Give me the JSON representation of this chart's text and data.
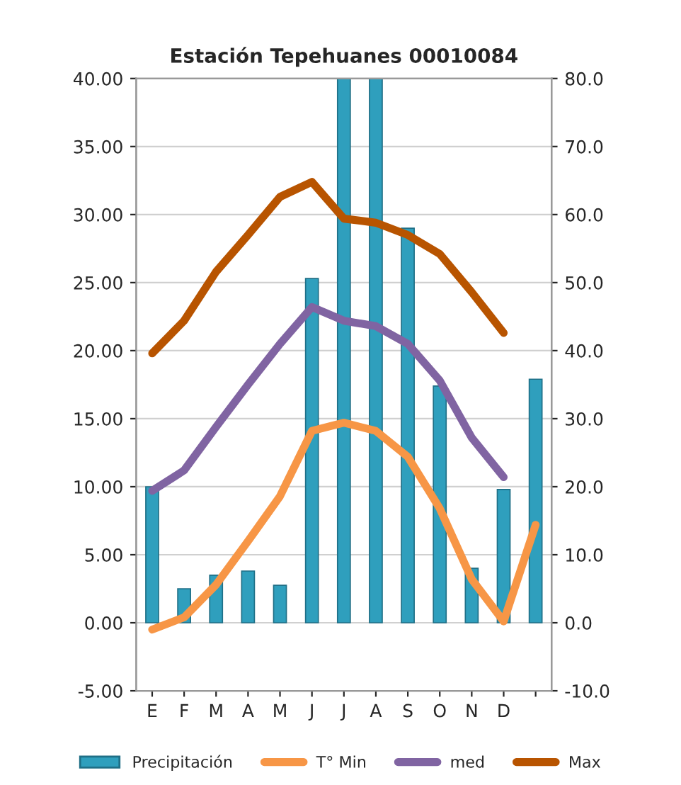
{
  "chart_data": {
    "type": "bar",
    "title": "Estación Tepehuanes 00010084",
    "categories": [
      "E",
      "F",
      "M",
      "A",
      "M",
      "J",
      "J",
      "A",
      "S",
      "O",
      "N",
      "D",
      null
    ],
    "series": [
      {
        "name": "Precipitación",
        "axis": "y2",
        "color": "#2f9fbd",
        "values": [
          20,
          5,
          7,
          7.6,
          5.5,
          50.6,
          80,
          80,
          58,
          34.8,
          8,
          19.6,
          35.8
        ]
      },
      {
        "name": "T° Min",
        "type": "line",
        "color": "#f79646",
        "values": [
          -0.5,
          0.4,
          2.8,
          6,
          9.3,
          14.1,
          14.7,
          14.1,
          12.2,
          8.4,
          3.2,
          0.1,
          7.2
        ]
      },
      {
        "name": "med",
        "type": "line",
        "color": "#8064a2",
        "values": [
          9.7,
          11.2,
          14.4,
          17.5,
          20.5,
          23.2,
          22.2,
          21.8,
          20.5,
          17.8,
          13.6,
          10.7,
          null
        ]
      },
      {
        "name": "Max",
        "type": "line",
        "color": "#b85400",
        "values": [
          19.8,
          22.2,
          25.8,
          28.5,
          31.3,
          32.4,
          29.7,
          29.4,
          28.5,
          27.1,
          24.3,
          21.3,
          null
        ]
      }
    ],
    "ylim": [
      -5,
      40
    ],
    "yticks": [
      {
        "value": -5,
        "label": "-5.00"
      },
      {
        "value": 0,
        "label": "0.00"
      },
      {
        "value": 5,
        "label": "5.00"
      },
      {
        "value": 10,
        "label": "10.00"
      },
      {
        "value": 15,
        "label": "15.00"
      },
      {
        "value": 20,
        "label": "20.00"
      },
      {
        "value": 25,
        "label": "25.00"
      },
      {
        "value": 30,
        "label": "30.00"
      },
      {
        "value": 35,
        "label": "35.00"
      },
      {
        "value": 40,
        "label": "40.00"
      }
    ],
    "y2lim": [
      -10,
      80
    ],
    "y2ticks": [
      {
        "value": -10,
        "label": "-10.0"
      },
      {
        "value": 0,
        "label": "0.0"
      },
      {
        "value": 10,
        "label": "10.0"
      },
      {
        "value": 20,
        "label": "20.0"
      },
      {
        "value": 30,
        "label": "30.0"
      },
      {
        "value": 40,
        "label": "40.0"
      },
      {
        "value": 50,
        "label": "50.0"
      },
      {
        "value": 60,
        "label": "60.0"
      },
      {
        "value": 70,
        "label": "70.0"
      },
      {
        "value": 80,
        "label": "80.0"
      }
    ],
    "grid": "y",
    "legend": "bottom",
    "line_style": "solid",
    "marker": "none"
  }
}
